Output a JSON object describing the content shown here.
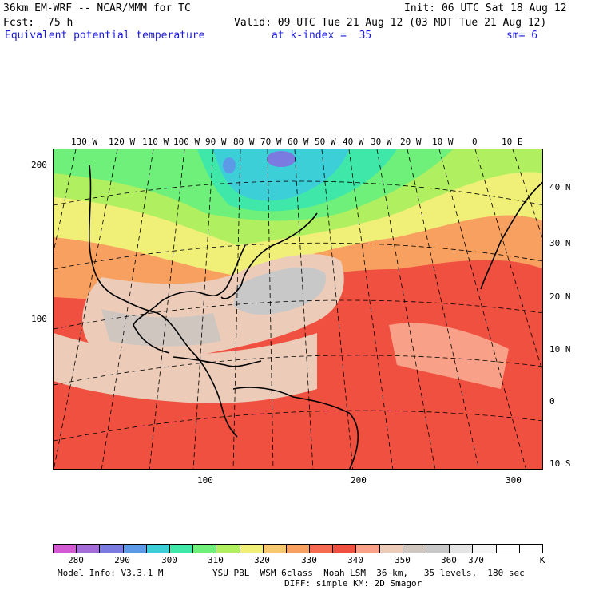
{
  "header": {
    "model": "36km EM-WRF -- NCAR/MMM for TC",
    "init": "Init: 06 UTC Sat 18 Aug 12",
    "fcst_label": "Fcst:",
    "fcst_value": "75 h",
    "valid": "Valid: 09 UTC Tue 21 Aug 12 (03 MDT Tue 21 Aug 12)",
    "field": "Equivalent potential temperature",
    "level": "at k-index =  35",
    "smoothing": "sm= 6"
  },
  "map": {
    "top_lon_labels": [
      "130 W",
      "120 W",
      "110 W",
      "100 W",
      "90 W",
      "80 W",
      "70 W",
      "60 W",
      "50 W",
      "40 W",
      "30 W",
      "20 W",
      "10 W",
      "0",
      "10 E"
    ],
    "right_lat_labels": [
      "40 N",
      "30 N",
      "20 N",
      "10 N",
      "0",
      "10 S"
    ],
    "left_grid_labels": [
      "200",
      "100"
    ],
    "bottom_grid_labels": [
      "100",
      "200",
      "300"
    ]
  },
  "colorbar": {
    "colors": [
      "#d35ad3",
      "#a46cd6",
      "#7a7ae0",
      "#5c9ae8",
      "#3ccfd8",
      "#3fe8a8",
      "#6ef07a",
      "#b0f060",
      "#f0f078",
      "#f8c870",
      "#f8a060",
      "#f56a50",
      "#f05040",
      "#f8a088",
      "#ecccb8",
      "#cfc6c0",
      "#c8c8c8",
      "#e4e4e4",
      "#f4f4f4",
      "#ffffff",
      "#ffffff"
    ],
    "labels": [
      "280",
      "290",
      "300",
      "310",
      "320",
      "330",
      "340",
      "350",
      "360",
      "370",
      "K"
    ]
  },
  "footer": {
    "model_info": "Model Info: V3.3.1 M",
    "physics_line1": "YSU PBL  WSM 6class  Noah LSM  36 km,   35 levels,  180 sec",
    "physics_line2": "DIFF: simple KM: 2D Smagor"
  }
}
